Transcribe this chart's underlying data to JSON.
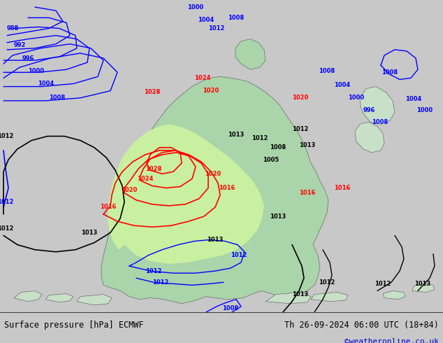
{
  "title_left": "Surface pressure [hPa] ECMWF",
  "title_right": "Th 26-09-2024 06:00 UTC (18+84)",
  "credit": "©weatheronline.co.uk",
  "bg_color": "#c8c8c8",
  "land_color": "#c8dfc8",
  "highlight_color": "#90ee90",
  "figsize": [
    6.34,
    4.9
  ],
  "dpi": 100
}
